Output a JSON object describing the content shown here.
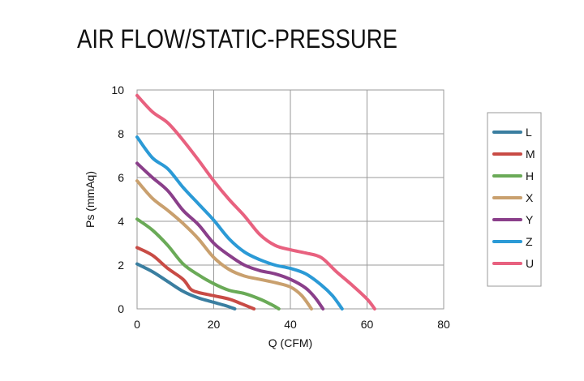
{
  "title": "AIR FLOW/STATIC-PRESSURE",
  "chart_data": {
    "type": "line",
    "title": "AIR FLOW/STATIC-PRESSURE",
    "xlabel": "Q (CFM)",
    "ylabel": "Ps (mmAq)",
    "xlim": [
      0,
      80
    ],
    "ylim": [
      0,
      10
    ],
    "xticks": [
      "0",
      "20",
      "40",
      "60",
      "80"
    ],
    "yticks": [
      "0",
      "2",
      "4",
      "6",
      "8",
      "10"
    ],
    "grid": true,
    "legend_position": "right",
    "series": [
      {
        "name": "L",
        "color": "#3a7ea0",
        "x": [
          0,
          4,
          8,
          12,
          16,
          20,
          23,
          25.5
        ],
        "y": [
          2.05,
          1.7,
          1.25,
          0.8,
          0.5,
          0.3,
          0.15,
          0
        ]
      },
      {
        "name": "M",
        "color": "#c84b45",
        "x": [
          0,
          4,
          8,
          12,
          14,
          16,
          20,
          24,
          27,
          30.5
        ],
        "y": [
          2.8,
          2.45,
          1.85,
          1.35,
          0.9,
          0.75,
          0.6,
          0.45,
          0.25,
          0
        ]
      },
      {
        "name": "H",
        "color": "#6aaa57",
        "x": [
          0,
          4,
          8,
          12,
          16,
          20,
          24,
          28,
          32,
          35,
          37
        ],
        "y": [
          4.1,
          3.6,
          2.9,
          2.05,
          1.55,
          1.15,
          0.85,
          0.7,
          0.45,
          0.2,
          0
        ]
      },
      {
        "name": "X",
        "color": "#c9a06e",
        "x": [
          0,
          4,
          8,
          12,
          16,
          20,
          24,
          28,
          32,
          36,
          40,
          43,
          45.5
        ],
        "y": [
          5.85,
          5.05,
          4.5,
          3.9,
          3.2,
          2.35,
          1.8,
          1.5,
          1.35,
          1.2,
          1.0,
          0.6,
          0
        ]
      },
      {
        "name": "Y",
        "color": "#8a3f8a",
        "x": [
          0,
          4,
          8,
          12,
          16,
          20,
          24,
          28,
          32,
          36,
          40,
          44,
          46.5,
          48.5
        ],
        "y": [
          6.65,
          6.0,
          5.4,
          4.5,
          3.85,
          3.0,
          2.45,
          2.0,
          1.75,
          1.6,
          1.35,
          0.95,
          0.5,
          0
        ]
      },
      {
        "name": "Z",
        "color": "#2b9ad6",
        "x": [
          0,
          4,
          8,
          12,
          16,
          20,
          24,
          28,
          32,
          36,
          40,
          44,
          48,
          51,
          53.5
        ],
        "y": [
          7.85,
          6.9,
          6.4,
          5.55,
          4.8,
          4.05,
          3.2,
          2.6,
          2.25,
          2.0,
          1.85,
          1.6,
          1.1,
          0.6,
          0
        ]
      },
      {
        "name": "U",
        "color": "#e8617f",
        "x": [
          0,
          4,
          8,
          12,
          16,
          20,
          24,
          28,
          32,
          36,
          40,
          44,
          48,
          52,
          56,
          60,
          62
        ],
        "y": [
          9.75,
          9.0,
          8.5,
          7.7,
          6.8,
          5.85,
          5.0,
          4.25,
          3.4,
          2.9,
          2.7,
          2.55,
          2.35,
          1.7,
          1.1,
          0.45,
          0
        ]
      }
    ]
  }
}
